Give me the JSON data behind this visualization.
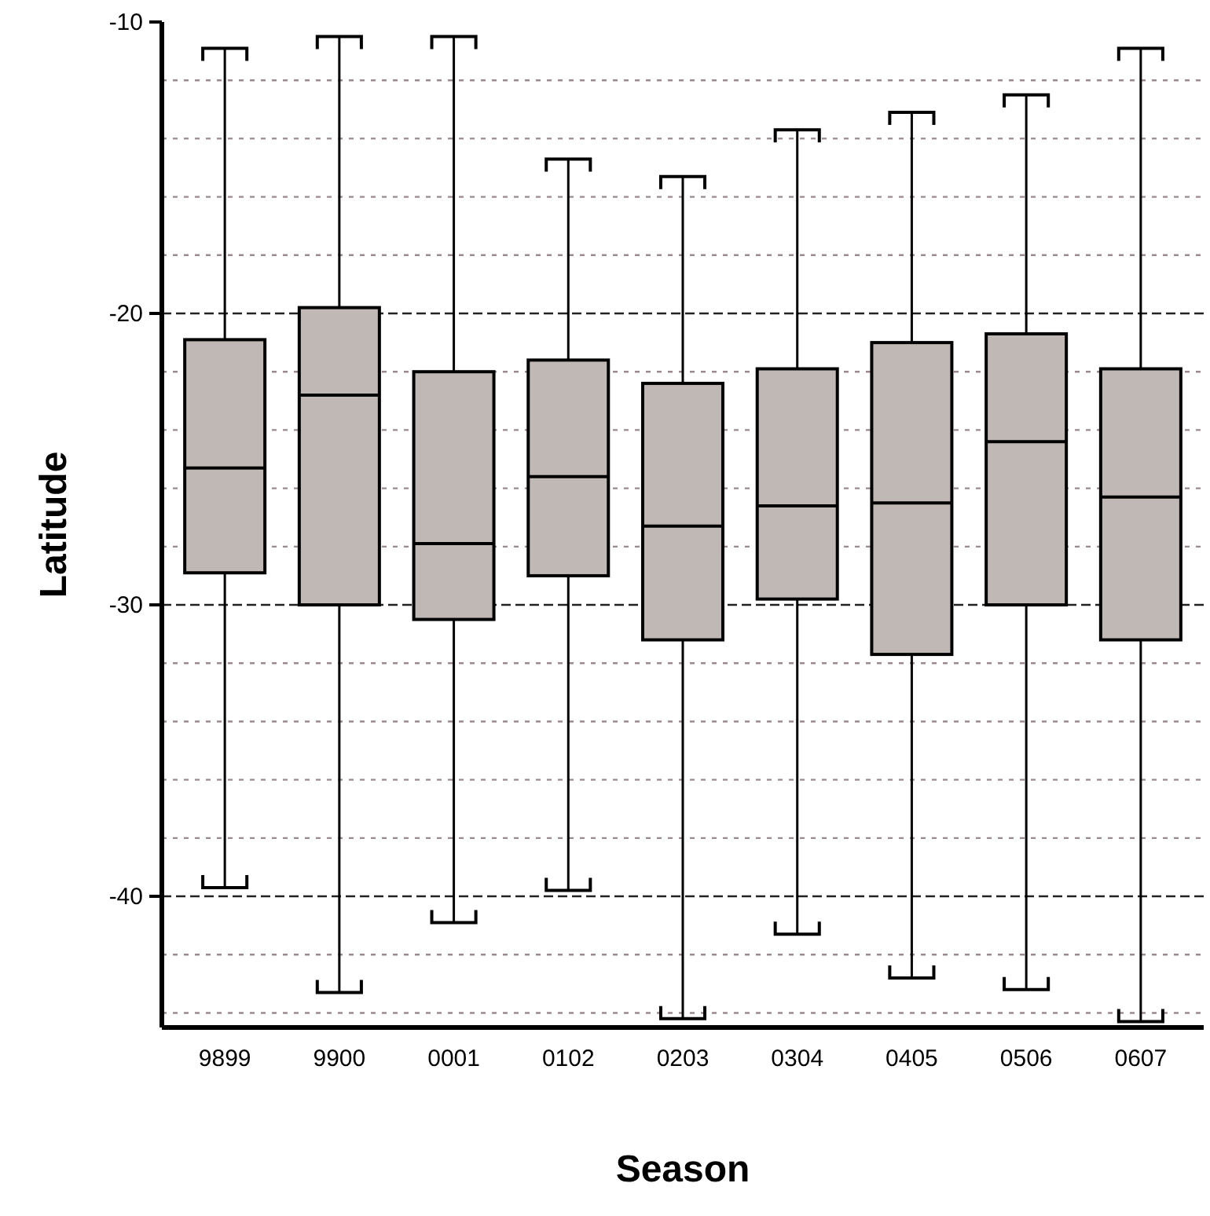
{
  "chart_data": {
    "type": "box",
    "xlabel": "Season",
    "ylabel": "Latitude",
    "categories": [
      "9899",
      "9900",
      "0001",
      "0102",
      "0203",
      "0304",
      "0405",
      "0506",
      "0607"
    ],
    "color": "#c0b8b5",
    "boxes": [
      {
        "low": -39.7,
        "q1": -28.9,
        "median": -25.3,
        "q3": -20.9,
        "high": -10.9
      },
      {
        "low": -43.3,
        "q1": -30.0,
        "median": -22.8,
        "q3": -19.8,
        "high": -10.5
      },
      {
        "low": -40.9,
        "q1": -30.5,
        "median": -27.9,
        "q3": -22.0,
        "high": -10.5
      },
      {
        "low": -39.8,
        "q1": -29.0,
        "median": -25.6,
        "q3": -21.6,
        "high": -14.7
      },
      {
        "low": -44.2,
        "q1": -31.2,
        "median": -27.3,
        "q3": -22.4,
        "high": -15.3
      },
      {
        "low": -41.3,
        "q1": -29.8,
        "median": -26.6,
        "q3": -21.9,
        "high": -13.7
      },
      {
        "low": -42.8,
        "q1": -31.7,
        "median": -26.5,
        "q3": -21.0,
        "high": -13.1
      },
      {
        "low": -43.2,
        "q1": -30.0,
        "median": -24.4,
        "q3": -20.7,
        "high": -12.5
      },
      {
        "low": -44.3,
        "q1": -31.2,
        "median": -26.3,
        "q3": -21.9,
        "high": -10.9
      }
    ],
    "ylim": [
      -44.5,
      -10
    ],
    "yticks": [
      -10,
      {
        "value": -12,
        "label": null
      },
      {
        "value": -14,
        "label": null
      },
      {
        "value": -16,
        "label": null
      },
      {
        "value": -18,
        "label": null
      },
      -20,
      {
        "value": -22,
        "label": null
      },
      {
        "value": -24,
        "label": null
      },
      {
        "value": -26,
        "label": null
      },
      {
        "value": -28,
        "label": null
      },
      -30,
      {
        "value": -32,
        "label": null
      },
      {
        "value": -34,
        "label": null
      },
      {
        "value": -36,
        "label": null
      },
      {
        "value": -38,
        "label": null
      },
      -40,
      {
        "value": -42,
        "label": null
      },
      {
        "value": -44,
        "label": null
      }
    ],
    "grid": true
  }
}
